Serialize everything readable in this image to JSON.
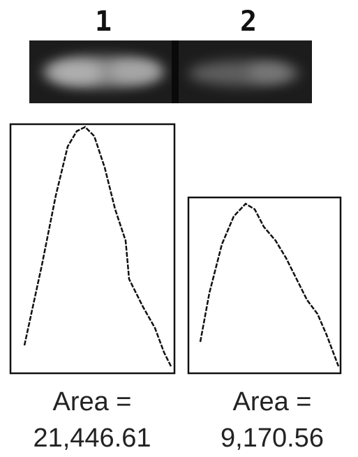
{
  "lanes": [
    {
      "label": "1",
      "area_label": "Area =",
      "area": "21,446.61"
    },
    {
      "label": "2",
      "area_label": "Area =",
      "area": "9,170.56"
    }
  ]
}
